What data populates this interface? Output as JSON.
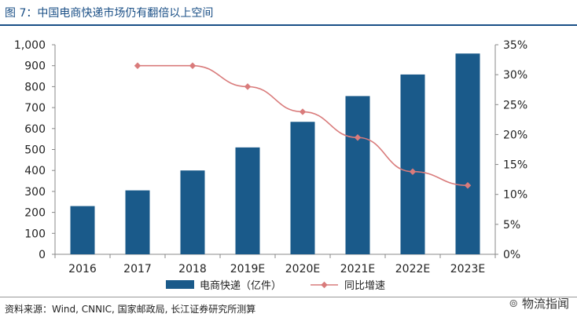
{
  "figure": {
    "title": "图 7：中国电商快递市场仍有翻倍以上空间",
    "source": "资料来源：Wind, CNNIC, 国家邮政局, 长江证券研究所测算",
    "watermark": "物流指闻"
  },
  "chart_data": {
    "type": "bar",
    "categories": [
      "2016",
      "2017",
      "2018",
      "2019E",
      "2020E",
      "2021E",
      "2022E",
      "2023E"
    ],
    "series": [
      {
        "name": "电商快递（亿件）",
        "type": "bar",
        "axis": "left",
        "color": "#1a5a8a",
        "values": [
          230,
          305,
          400,
          510,
          632,
          755,
          858,
          958
        ]
      },
      {
        "name": "同比增速",
        "type": "line",
        "axis": "right",
        "color": "#d97b7b",
        "values": [
          null,
          31.5,
          31.5,
          28.0,
          23.8,
          19.5,
          13.8,
          11.5
        ]
      }
    ],
    "y_left": {
      "ylim": [
        0,
        1000
      ],
      "ticks": [
        "0",
        "100",
        "200",
        "300",
        "400",
        "500",
        "600",
        "700",
        "800",
        "900",
        "1,000"
      ]
    },
    "y_right": {
      "ylim": [
        0,
        35
      ],
      "ticks": [
        "0%",
        "5%",
        "10%",
        "15%",
        "20%",
        "25%",
        "30%",
        "35%"
      ]
    },
    "grid": false,
    "legend": "bottom"
  }
}
